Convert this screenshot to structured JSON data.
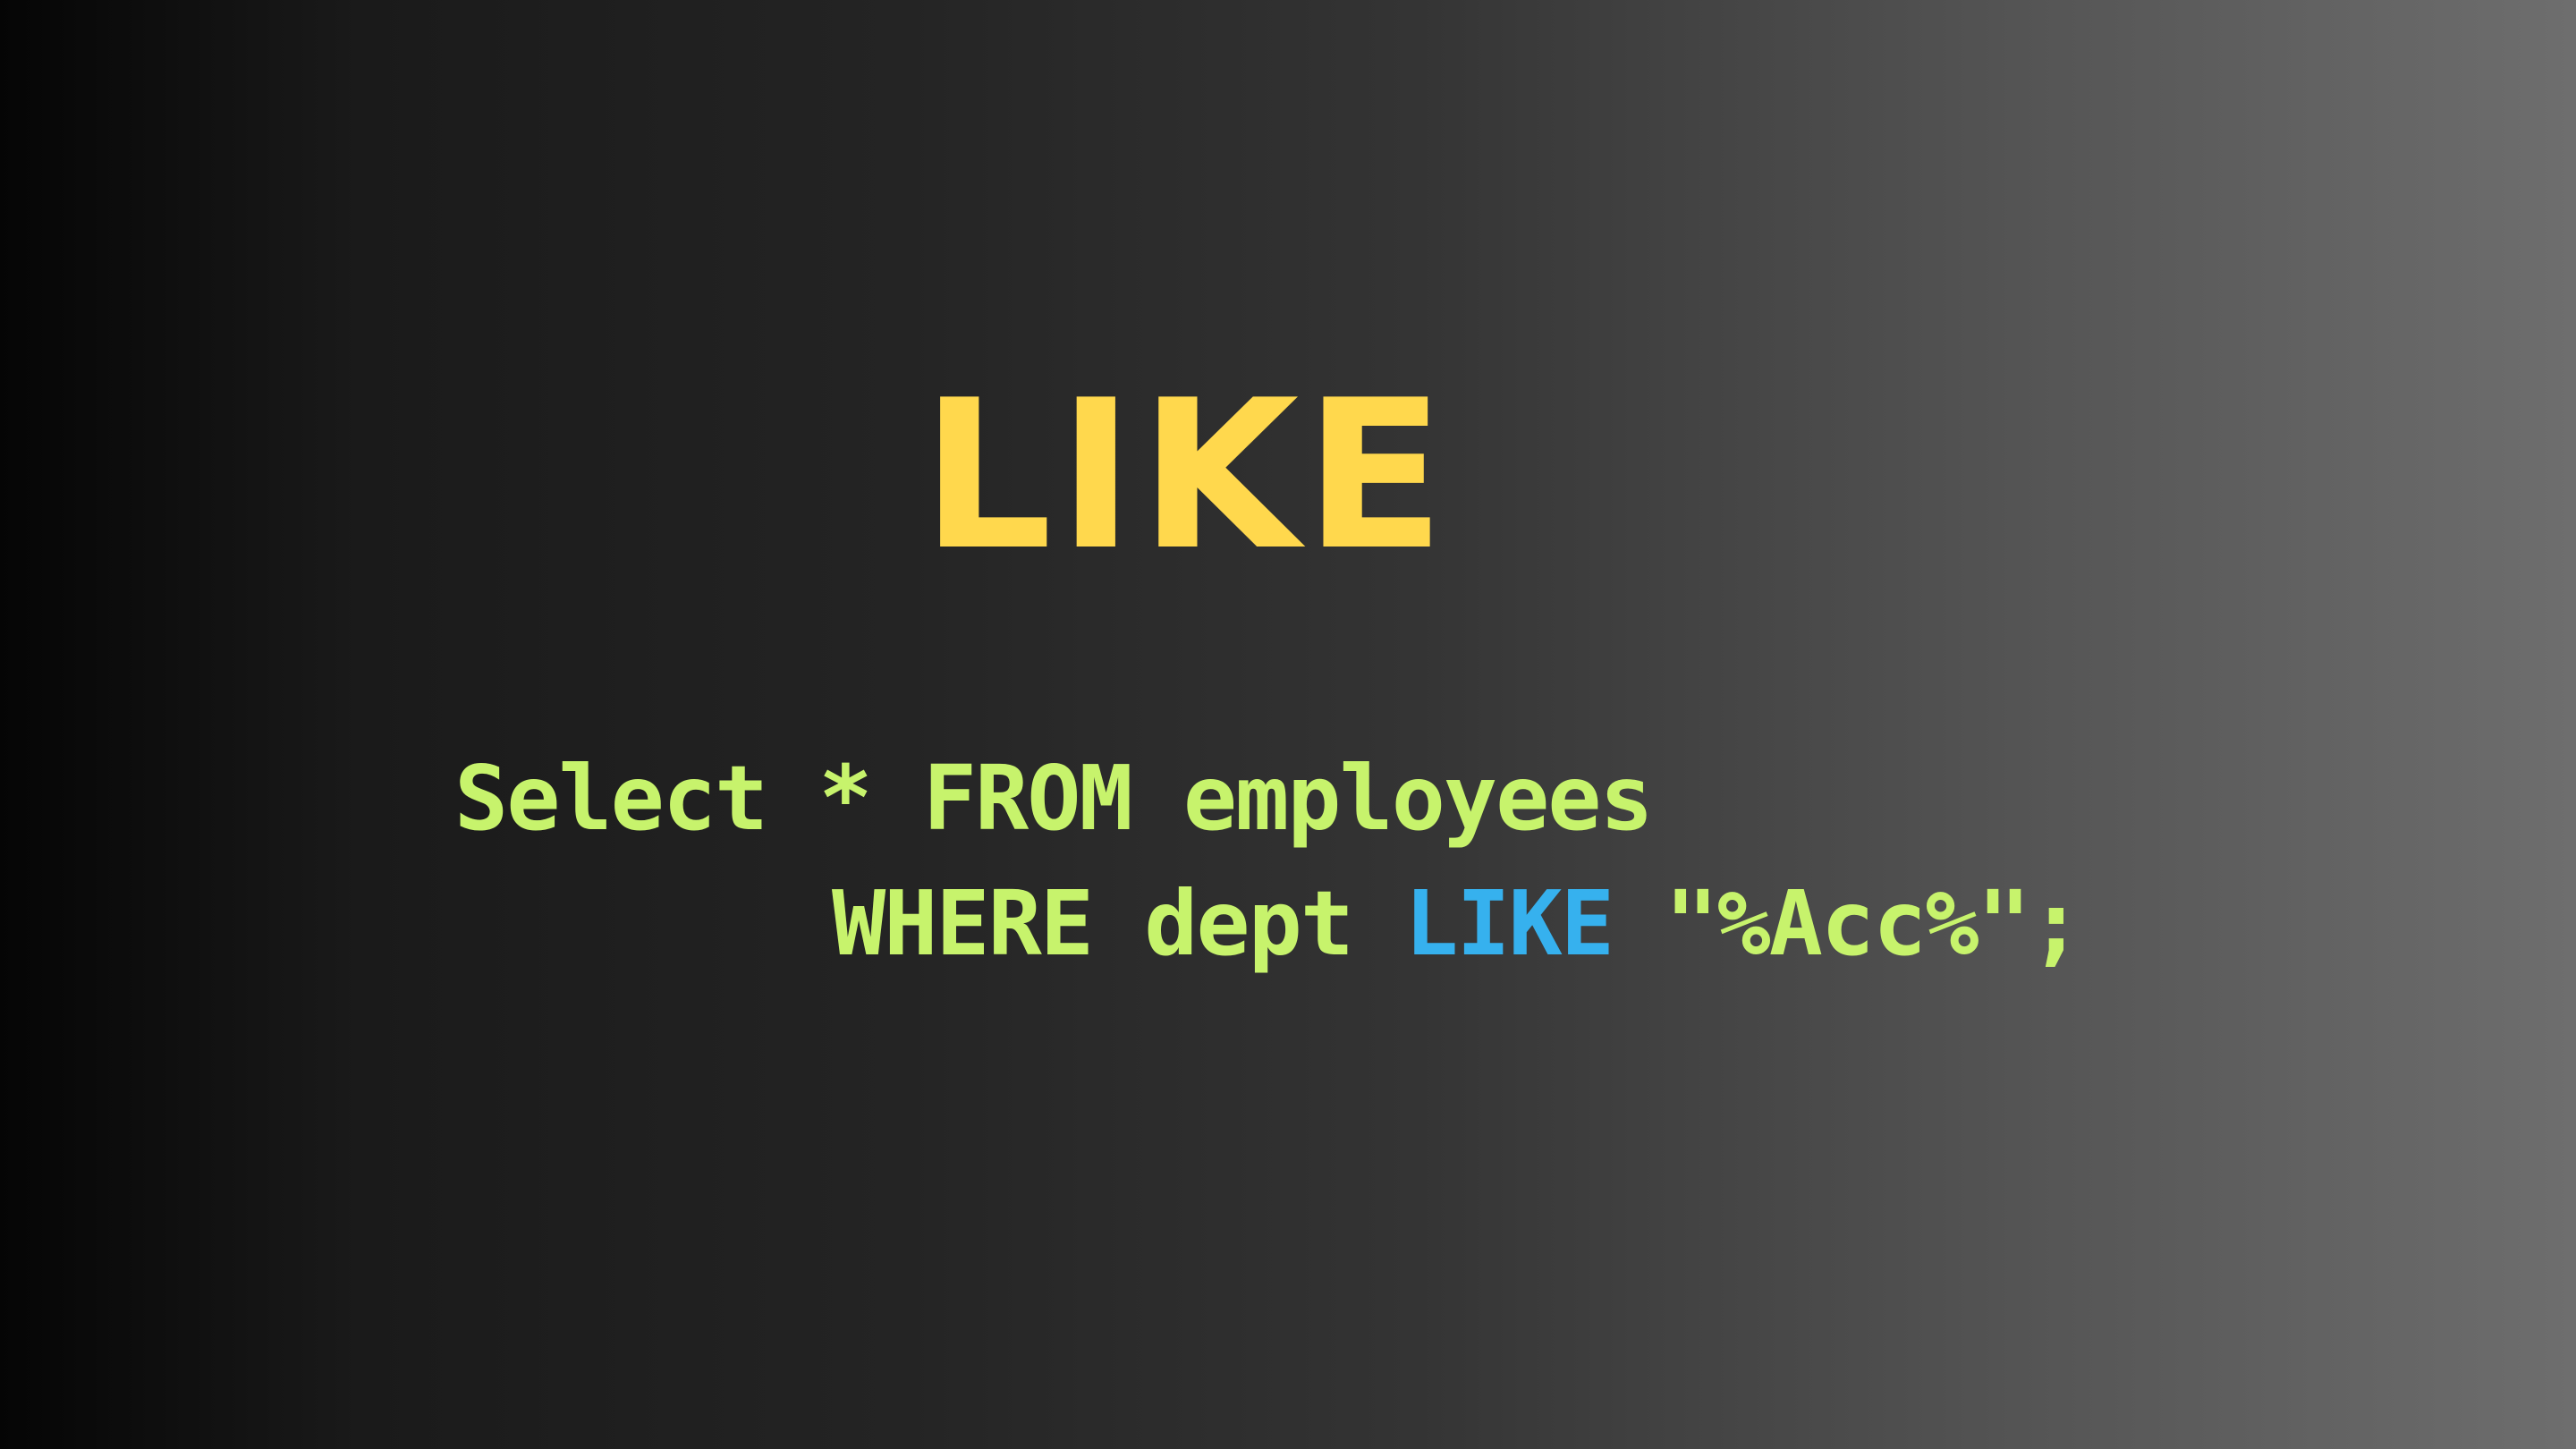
{
  "title": "LIKE",
  "code": {
    "line1": "Select * FROM employees",
    "line2_part1": "WHERE dept ",
    "line2_keyword": "LIKE",
    "line2_part2": " \"%Acc%\";"
  },
  "colors": {
    "title": "#ffd84d",
    "code": "#c7f36c",
    "keyword": "#36b1ee",
    "background_left": "#050505",
    "background_right": "#6e6e6e"
  }
}
